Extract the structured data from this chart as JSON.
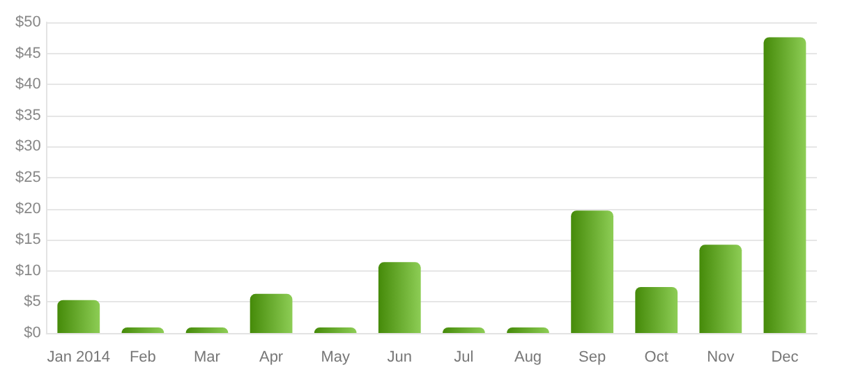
{
  "chart_data": {
    "type": "bar",
    "categories": [
      "Jan 2014",
      "Feb",
      "Mar",
      "Apr",
      "May",
      "Jun",
      "Jul",
      "Aug",
      "Sep",
      "Oct",
      "Nov",
      "Dec"
    ],
    "values": [
      5.3,
      0.9,
      0.9,
      6.3,
      0.9,
      11.4,
      0.9,
      0.9,
      19.7,
      7.4,
      14.2,
      47.6
    ],
    "color": "#5cb80c",
    "ylim": [
      0,
      50
    ],
    "yticks": [
      {
        "value": 0,
        "label": "$0"
      },
      {
        "value": 5,
        "label": "$5"
      },
      {
        "value": 10,
        "label": "$10"
      },
      {
        "value": 15,
        "label": "$15"
      },
      {
        "value": 20,
        "label": "$20"
      },
      {
        "value": 25,
        "label": "$25"
      },
      {
        "value": 30,
        "label": "$30"
      },
      {
        "value": 35,
        "label": "$35"
      },
      {
        "value": 40,
        "label": "$40"
      },
      {
        "value": 45,
        "label": "$45"
      },
      {
        "value": 50,
        "label": "$50"
      }
    ],
    "grid": "y"
  }
}
